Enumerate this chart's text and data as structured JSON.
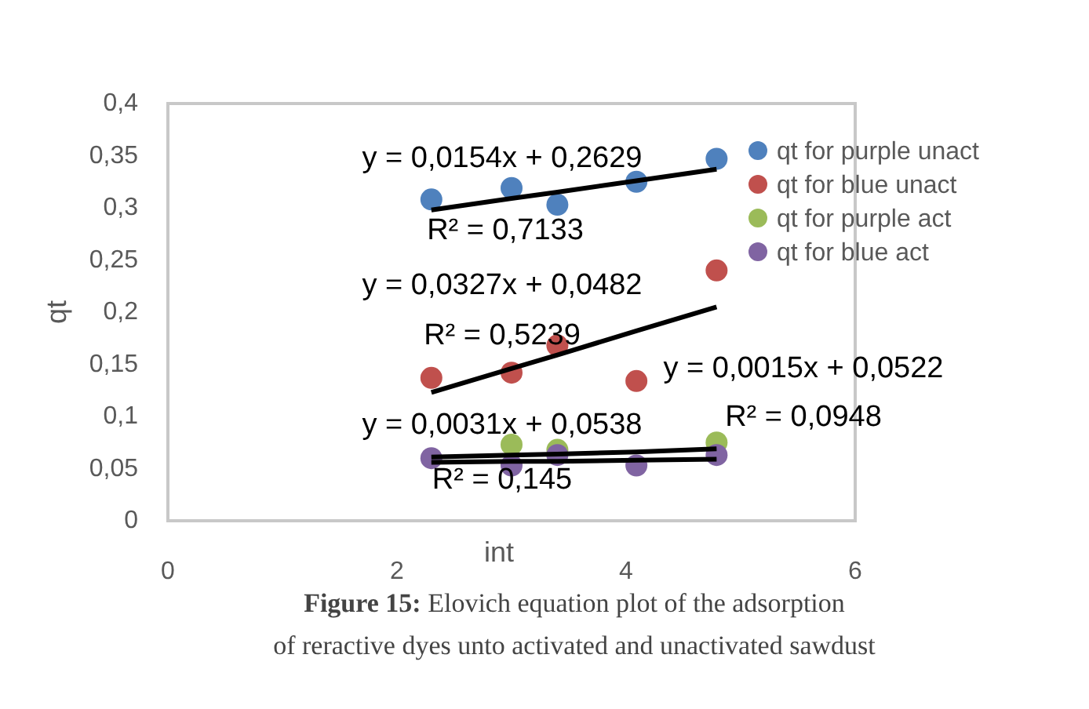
{
  "chart_data": {
    "type": "scatter",
    "xlabel": "int",
    "ylabel": "qt",
    "xlim": [
      0,
      6
    ],
    "xticks": [
      0,
      2,
      4,
      6
    ],
    "ylim": [
      0,
      0.4
    ],
    "yticks": [
      {
        "value": 0,
        "label": "0"
      },
      {
        "value": 0.05,
        "label": "0,05"
      },
      {
        "value": 0.1,
        "label": "0,1"
      },
      {
        "value": 0.15,
        "label": "0,15"
      },
      {
        "value": 0.2,
        "label": "0,2"
      },
      {
        "value": 0.25,
        "label": "0,25"
      },
      {
        "value": 0.3,
        "label": "0,3"
      },
      {
        "value": 0.35,
        "label": "0,35"
      },
      {
        "value": 0.4,
        "label": "0,4"
      }
    ],
    "x": [
      2.3,
      3.0,
      3.4,
      4.09,
      4.79
    ],
    "marker": "circle",
    "grid": false,
    "legend": "right",
    "series": [
      {
        "name": "qt for purple unact",
        "color": "#4f81bd",
        "values": [
          0.308,
          0.319,
          0.303,
          0.325,
          0.347
        ]
      },
      {
        "name": "qt for blue unact",
        "color": "#c0504d",
        "values": [
          0.137,
          0.142,
          0.168,
          0.134,
          0.24
        ]
      },
      {
        "name": "qt for purple act",
        "color": "#9bbb59",
        "values": [
          null,
          0.073,
          0.068,
          null,
          0.075
        ]
      },
      {
        "name": "qt for blue act",
        "color": "#8064a2",
        "values": [
          0.06,
          0.053,
          0.063,
          0.053,
          0.063
        ]
      },
      {
        "type": "line",
        "color": "#000000",
        "marker": "none",
        "values": [
          0.298,
          0.309,
          0.315,
          0.326,
          0.337
        ]
      },
      {
        "type": "line",
        "color": "#000000",
        "marker": "none",
        "values": [
          0.123,
          0.146,
          0.159,
          0.182,
          0.205
        ]
      },
      {
        "type": "line",
        "color": "#000000",
        "marker": "none",
        "values": [
          0.061,
          0.063,
          0.064,
          0.066,
          0.069
        ]
      },
      {
        "type": "line",
        "color": "#000000",
        "marker": "none",
        "values": [
          0.056,
          0.057,
          0.057,
          0.058,
          0.059
        ]
      }
    ],
    "annotations": [
      "y = 0,0154x + 0,2629",
      "R² = 0,7133",
      "y = 0,0327x + 0,0482",
      "R² = 0,5239",
      "y = 0,0015x + 0,0522",
      "R² = 0,0948",
      "y = 0,0031x + 0,0538",
      "R² = 0,145",
      "Figure 15: Elovich equation plot of the adsorption of reractive dyes unto activated and unactivated sawdust"
    ]
  }
}
